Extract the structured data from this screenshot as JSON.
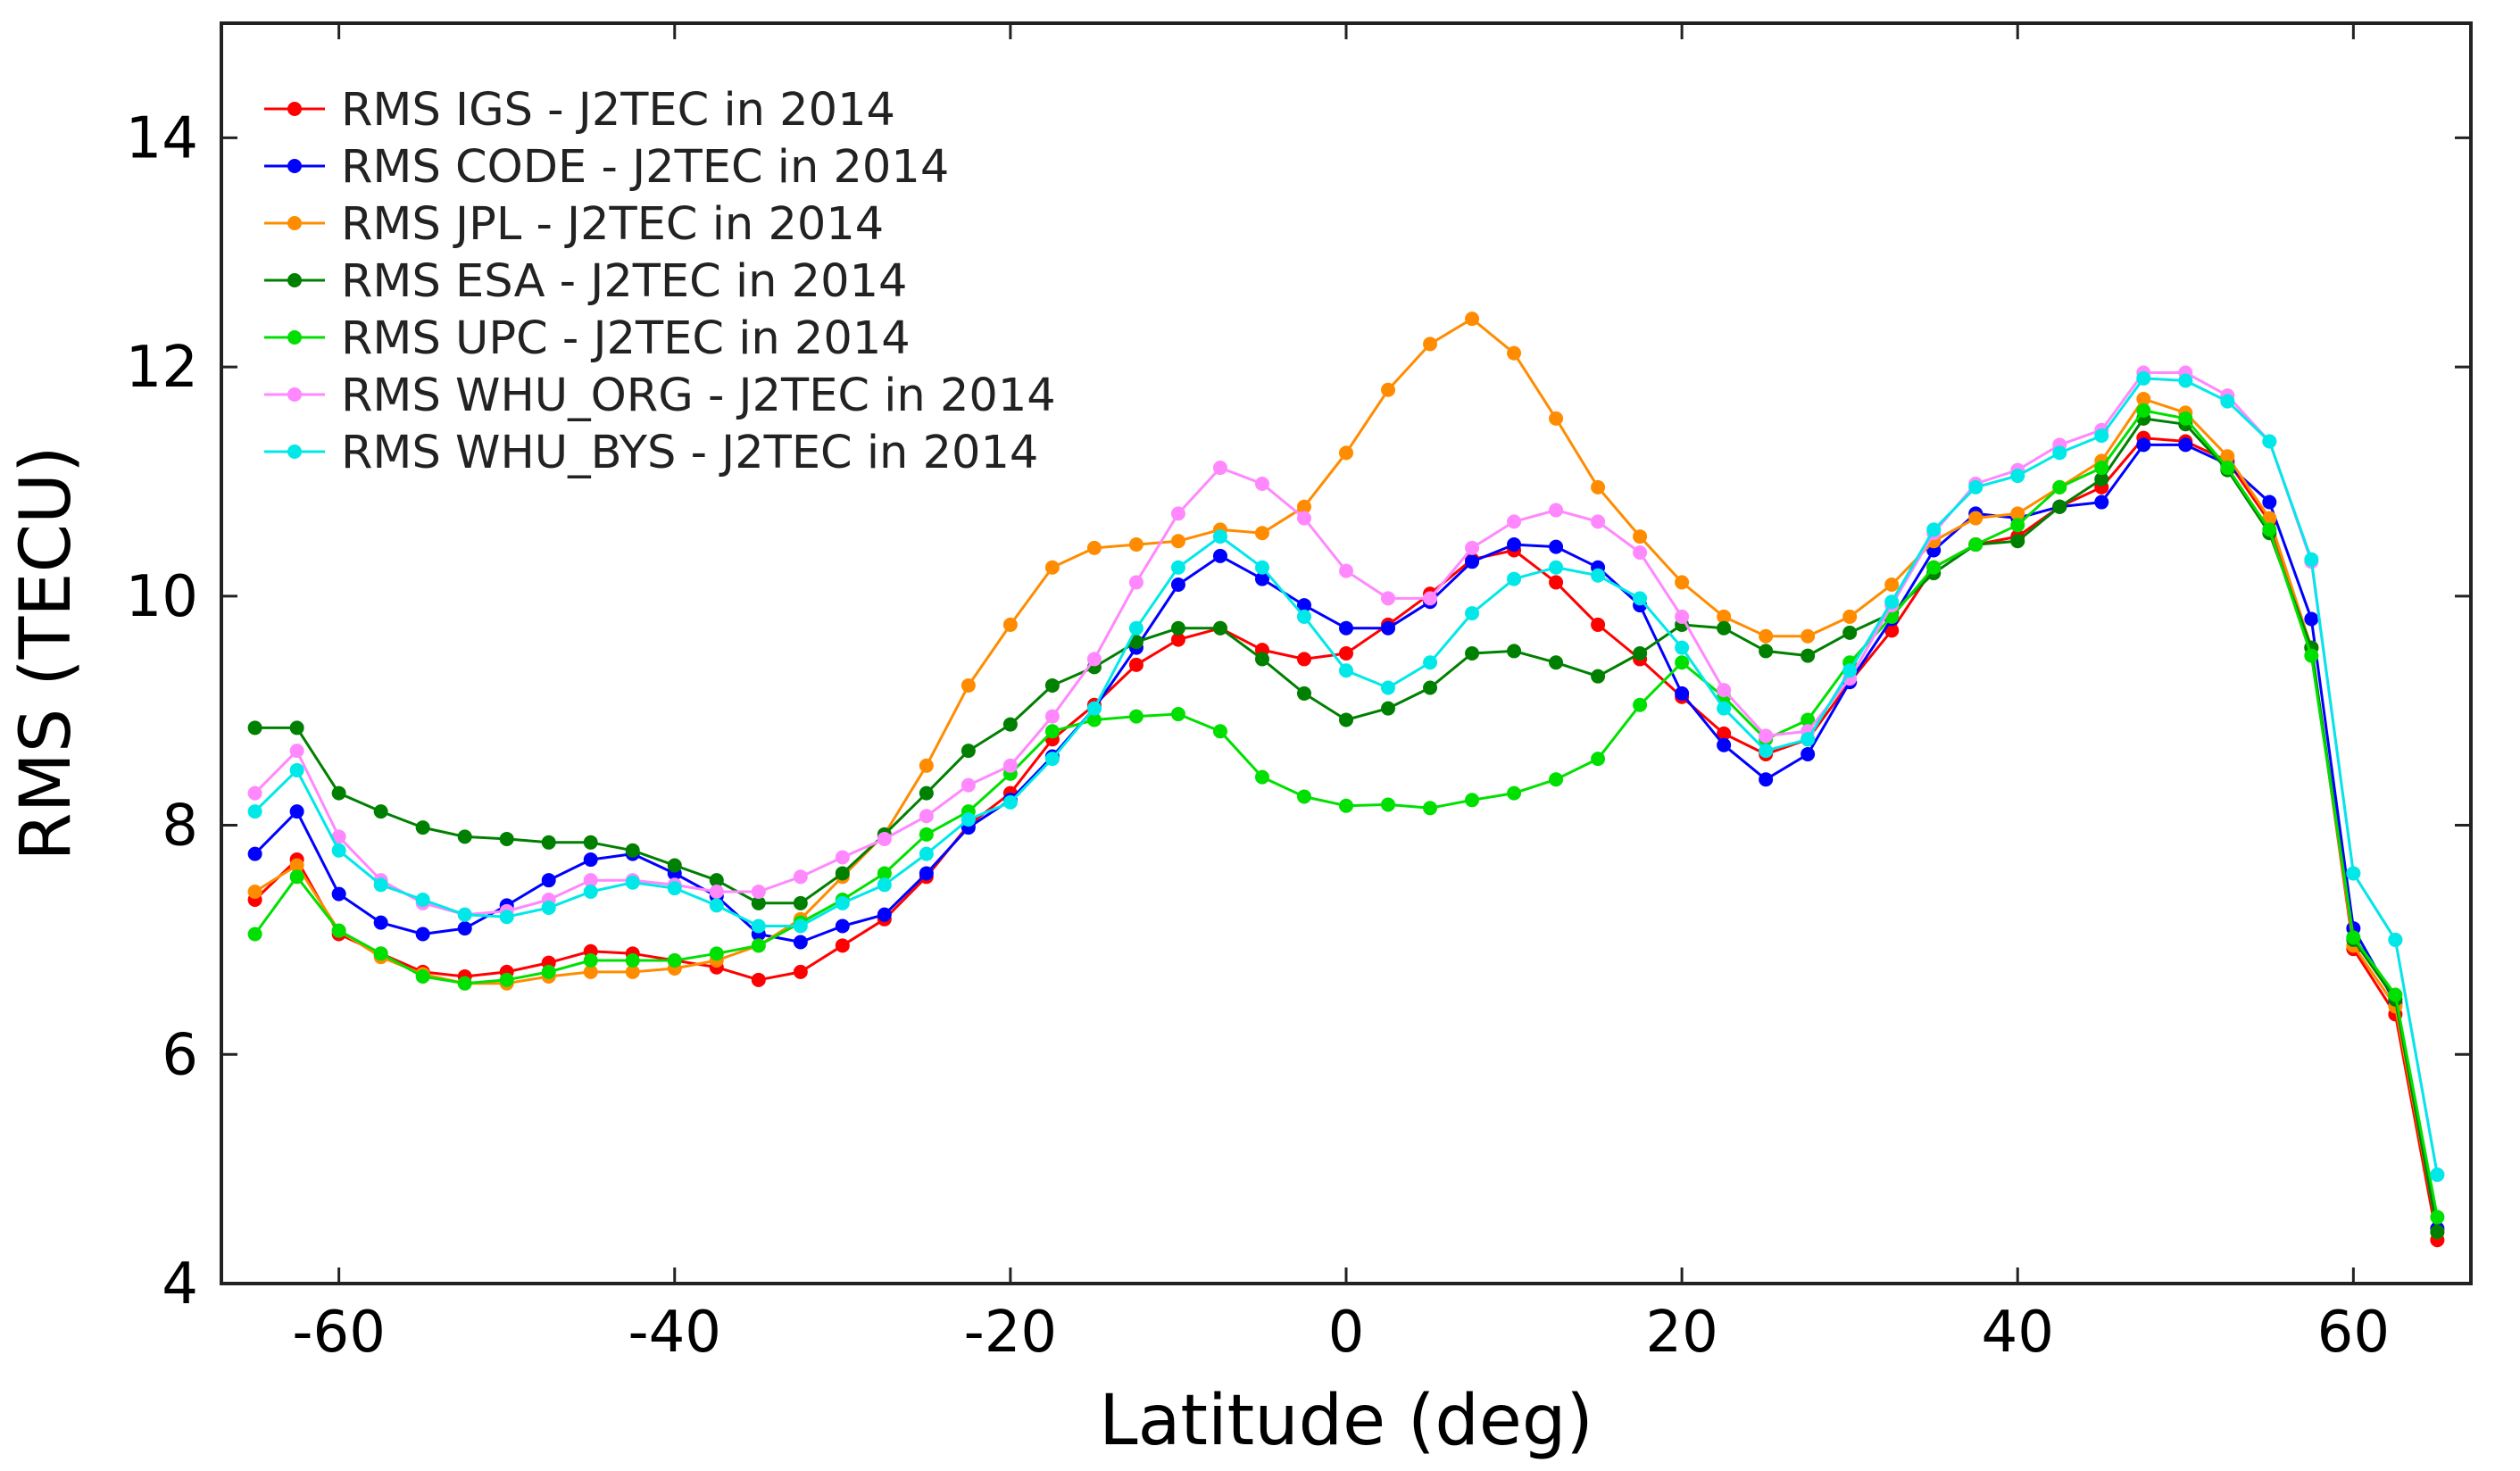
{
  "chart_data": {
    "type": "line",
    "title": "",
    "xlabel": "Latitude (deg)",
    "ylabel": "RMS (TECU)",
    "xlim": [
      -67,
      67
    ],
    "ylim": [
      4,
      15
    ],
    "xticks": [
      -60,
      -40,
      -20,
      0,
      20,
      40,
      60
    ],
    "yticks": [
      4,
      6,
      8,
      10,
      12,
      14
    ],
    "grid": false,
    "legend_position": "top-left",
    "x": [
      -65,
      -62.5,
      -60,
      -57.5,
      -55,
      -52.5,
      -50,
      -47.5,
      -45,
      -42.5,
      -40,
      -37.5,
      -35,
      -32.5,
      -30,
      -27.5,
      -25,
      -22.5,
      -20,
      -17.5,
      -15,
      -12.5,
      -10,
      -7.5,
      -5,
      -2.5,
      0,
      2.5,
      5,
      7.5,
      10,
      12.5,
      15,
      17.5,
      20,
      22.5,
      25,
      27.5,
      30,
      32.5,
      35,
      37.5,
      40,
      42.5,
      45,
      47.5,
      50,
      52.5,
      55,
      57.5,
      60,
      62.5,
      65
    ],
    "series": [
      {
        "name": "RMS IGS - J2TEC in 2014",
        "color": "#ff0000",
        "values": [
          7.35,
          7.7,
          7.05,
          6.88,
          6.72,
          6.68,
          6.72,
          6.8,
          6.9,
          6.88,
          6.82,
          6.76,
          6.65,
          6.72,
          6.95,
          7.18,
          7.55,
          8.0,
          8.28,
          8.75,
          9.05,
          9.4,
          9.62,
          9.72,
          9.53,
          9.45,
          9.5,
          9.75,
          10.02,
          10.32,
          10.4,
          10.12,
          9.75,
          9.45,
          9.12,
          8.8,
          8.62,
          8.75,
          9.25,
          9.7,
          10.25,
          10.45,
          10.52,
          10.78,
          10.95,
          11.38,
          11.35,
          11.18,
          10.65,
          9.55,
          6.92,
          6.35,
          4.38
        ]
      },
      {
        "name": "RMS CODE - J2TEC in 2014",
        "color": "#0000ff",
        "values": [
          7.75,
          8.12,
          7.4,
          7.15,
          7.05,
          7.1,
          7.3,
          7.52,
          7.7,
          7.75,
          7.58,
          7.38,
          7.05,
          6.98,
          7.12,
          7.22,
          7.58,
          7.98,
          8.22,
          8.6,
          9.02,
          9.55,
          10.1,
          10.35,
          10.15,
          9.92,
          9.72,
          9.72,
          9.95,
          10.3,
          10.45,
          10.43,
          10.25,
          9.92,
          9.15,
          8.7,
          8.4,
          8.62,
          9.25,
          9.8,
          10.4,
          10.72,
          10.68,
          10.78,
          10.82,
          11.32,
          11.32,
          11.15,
          10.82,
          9.8,
          7.1,
          6.45,
          4.48
        ]
      },
      {
        "name": "RMS JPL - J2TEC in 2014",
        "color": "#ff8c00",
        "values": [
          7.42,
          7.65,
          7.08,
          6.85,
          6.7,
          6.62,
          6.62,
          6.68,
          6.72,
          6.72,
          6.75,
          6.82,
          6.95,
          7.18,
          7.55,
          7.92,
          8.52,
          9.22,
          9.75,
          10.25,
          10.42,
          10.45,
          10.48,
          10.58,
          10.55,
          10.78,
          11.25,
          11.8,
          12.2,
          12.42,
          12.12,
          11.55,
          10.95,
          10.52,
          10.12,
          9.82,
          9.65,
          9.65,
          9.82,
          10.1,
          10.48,
          10.68,
          10.72,
          10.95,
          11.18,
          11.72,
          11.6,
          11.22,
          10.68,
          9.55,
          6.95,
          6.42,
          4.45
        ]
      },
      {
        "name": "RMS ESA - J2TEC in 2014",
        "color": "#008000",
        "values": [
          8.85,
          8.85,
          8.28,
          8.12,
          7.98,
          7.9,
          7.88,
          7.85,
          7.85,
          7.78,
          7.65,
          7.52,
          7.32,
          7.32,
          7.58,
          7.92,
          8.28,
          8.65,
          8.88,
          9.22,
          9.38,
          9.6,
          9.72,
          9.72,
          9.45,
          9.15,
          8.92,
          9.02,
          9.2,
          9.5,
          9.52,
          9.42,
          9.3,
          9.5,
          9.75,
          9.72,
          9.52,
          9.48,
          9.68,
          9.85,
          10.2,
          10.45,
          10.48,
          10.78,
          11.02,
          11.55,
          11.5,
          11.1,
          10.55,
          9.55,
          7.0,
          6.48,
          4.45
        ]
      },
      {
        "name": "RMS UPC - J2TEC in 2014",
        "color": "#00e000",
        "values": [
          7.05,
          7.55,
          7.08,
          6.88,
          6.68,
          6.62,
          6.65,
          6.72,
          6.82,
          6.82,
          6.82,
          6.88,
          6.95,
          7.15,
          7.35,
          7.58,
          7.92,
          8.12,
          8.45,
          8.82,
          8.92,
          8.95,
          8.97,
          8.82,
          8.42,
          8.25,
          8.17,
          8.18,
          8.15,
          8.22,
          8.28,
          8.4,
          8.58,
          9.05,
          9.42,
          9.12,
          8.75,
          8.92,
          9.42,
          9.82,
          10.25,
          10.45,
          10.62,
          10.95,
          11.12,
          11.62,
          11.55,
          11.12,
          10.58,
          9.48,
          7.02,
          6.52,
          4.58
        ]
      },
      {
        "name": "RMS WHU_ORG - J2TEC in 2014",
        "color": "#ff88ff",
        "values": [
          8.28,
          8.65,
          7.9,
          7.52,
          7.32,
          7.22,
          7.25,
          7.35,
          7.52,
          7.52,
          7.48,
          7.42,
          7.42,
          7.55,
          7.72,
          7.88,
          8.08,
          8.35,
          8.52,
          8.95,
          9.45,
          10.12,
          10.72,
          11.12,
          10.98,
          10.68,
          10.22,
          9.98,
          9.98,
          10.42,
          10.65,
          10.75,
          10.65,
          10.38,
          9.82,
          9.18,
          8.78,
          8.82,
          9.28,
          9.92,
          10.55,
          10.98,
          11.1,
          11.32,
          11.45,
          11.95,
          11.95,
          11.75,
          11.35,
          10.3,
          7.58,
          7.0,
          4.95
        ]
      },
      {
        "name": "RMS WHU_BYS - J2TEC in 2014",
        "color": "#00e8e8",
        "values": [
          8.12,
          8.48,
          7.78,
          7.48,
          7.35,
          7.22,
          7.2,
          7.28,
          7.42,
          7.5,
          7.45,
          7.3,
          7.12,
          7.12,
          7.32,
          7.48,
          7.75,
          8.05,
          8.2,
          8.58,
          9.02,
          9.72,
          10.25,
          10.52,
          10.25,
          9.82,
          9.35,
          9.2,
          9.42,
          9.85,
          10.15,
          10.25,
          10.18,
          9.98,
          9.55,
          9.02,
          8.65,
          8.75,
          9.35,
          9.95,
          10.58,
          10.95,
          11.05,
          11.25,
          11.4,
          11.9,
          11.88,
          11.7,
          11.35,
          10.32,
          7.58,
          7.0,
          4.95
        ]
      }
    ]
  }
}
